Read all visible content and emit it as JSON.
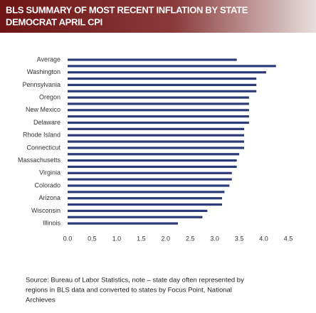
{
  "chart_data": {
    "type": "hbar",
    "title": [
      "BLS SUMMARY OF MOST RECENT INFLATION BY STATE",
      "DEMOCRAT APRIL CPI"
    ],
    "categories": [
      "Average",
      null,
      "Washington",
      null,
      "Pennsylvania",
      null,
      "Oregon",
      null,
      "New Mexico",
      null,
      "Delaware",
      null,
      "Rhode Island",
      null,
      "Connecticut",
      null,
      "Massachusetts",
      null,
      "Virginia",
      null,
      "Colorado",
      null,
      "Arizona",
      null,
      "Wisconsin",
      null,
      "Illinois"
    ],
    "values": [
      3.45,
      4.25,
      4.05,
      3.85,
      3.85,
      3.85,
      3.7,
      3.7,
      3.7,
      3.7,
      3.7,
      3.6,
      3.6,
      3.6,
      3.6,
      3.5,
      3.45,
      3.45,
      3.35,
      3.35,
      3.3,
      3.2,
      3.15,
      3.15,
      2.85,
      2.75,
      2.25
    ],
    "color": "#2b3b78",
    "xlim": [
      0,
      4.5
    ],
    "xticks": [
      {
        "value": 0,
        "label": "0.0"
      },
      0.5,
      {
        "value": 1,
        "label": "1.0"
      },
      1.5,
      {
        "value": 2,
        "label": "2.0"
      },
      2.5,
      {
        "value": 3,
        "label": "3.0"
      },
      3.5,
      {
        "value": 4,
        "label": "4.0"
      },
      4.5
    ],
    "source": [
      "Source:  Bureau of Labor Statistics,  note – state day often represented by",
      "regions in BLS data and converted to states by Focus Point, National",
      "Archieves"
    ]
  }
}
